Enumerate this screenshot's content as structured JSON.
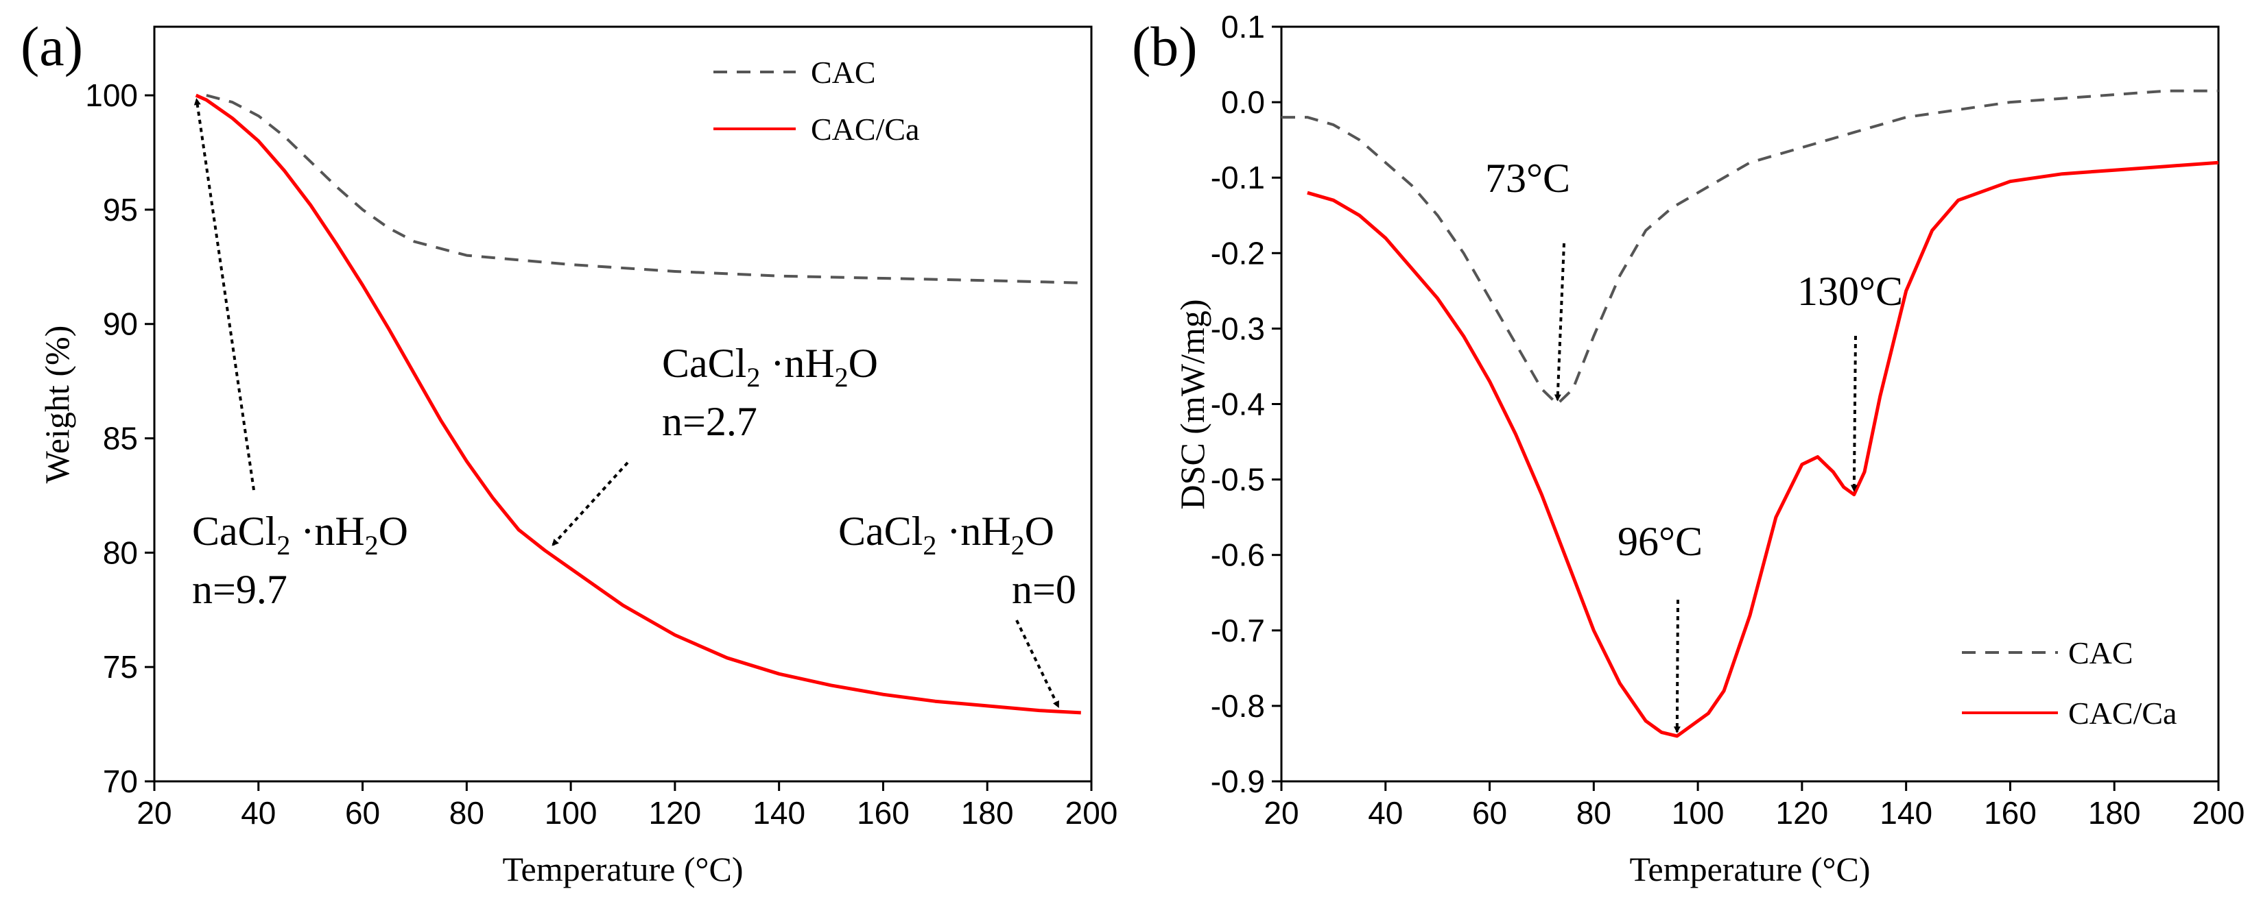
{
  "colors": {
    "cac": "#555555",
    "cac_ca": "#ff0000",
    "axis": "#000000"
  },
  "chart_data": [
    {
      "panel": "(a)",
      "type": "line",
      "title": "",
      "xlabel": "Temperature (°C)",
      "ylabel": "Weight (%)",
      "xlim": [
        20,
        200
      ],
      "ylim": [
        70,
        103
      ],
      "xticks": [
        20,
        40,
        60,
        80,
        100,
        120,
        140,
        160,
        180,
        200
      ],
      "yticks": [
        70,
        75,
        80,
        85,
        90,
        95,
        100
      ],
      "grid": false,
      "legend_position": "top-right",
      "series": [
        {
          "name": "CAC",
          "style": "dashed",
          "color": "#555555",
          "x": [
            30,
            35,
            40,
            45,
            50,
            55,
            60,
            65,
            70,
            80,
            90,
            100,
            120,
            140,
            160,
            180,
            198
          ],
          "y": [
            100,
            99.7,
            99.1,
            98.2,
            97.1,
            96.0,
            95.0,
            94.2,
            93.6,
            93.0,
            92.8,
            92.6,
            92.3,
            92.1,
            92.0,
            91.9,
            91.8
          ]
        },
        {
          "name": "CAC/Ca",
          "style": "solid",
          "color": "#ff0000",
          "x": [
            28,
            30,
            35,
            40,
            45,
            50,
            55,
            60,
            65,
            70,
            75,
            80,
            85,
            90,
            95,
            100,
            110,
            120,
            130,
            140,
            150,
            160,
            170,
            180,
            190,
            198
          ],
          "y": [
            100,
            99.8,
            99.0,
            98.0,
            96.7,
            95.2,
            93.5,
            91.7,
            89.8,
            87.8,
            85.8,
            84.0,
            82.4,
            81.0,
            80.1,
            79.3,
            77.7,
            76.4,
            75.4,
            74.7,
            74.2,
            73.8,
            73.5,
            73.3,
            73.1,
            73.0
          ]
        }
      ],
      "annotations": [
        {
          "id": "a1",
          "formula": "CaCl",
          "sub": "2",
          "middle": " ·nH",
          "sub2": "2",
          "tail": "O",
          "n_text": "n=9.7",
          "target_x": 28,
          "target_y": 100
        },
        {
          "id": "a2",
          "formula": "CaCl",
          "sub": "2",
          "middle": " ·nH",
          "sub2": "2",
          "tail": "O",
          "n_text": "n=2.7",
          "target_x": 96,
          "target_y": 80.2
        },
        {
          "id": "a3",
          "formula": "CaCl",
          "sub": "2",
          "middle": " ·nH",
          "sub2": "2",
          "tail": "O",
          "n_text": "n=0",
          "target_x": 194,
          "target_y": 73.1
        }
      ]
    },
    {
      "panel": "(b)",
      "type": "line",
      "title": "",
      "xlabel": "Temperature (°C)",
      "ylabel": "DSC (mW/mg)",
      "xlim": [
        20,
        200
      ],
      "ylim": [
        -0.9,
        0.1
      ],
      "xticks": [
        20,
        40,
        60,
        80,
        100,
        120,
        140,
        160,
        180,
        200
      ],
      "yticks": [
        -0.9,
        -0.8,
        -0.7,
        -0.6,
        -0.5,
        -0.4,
        -0.3,
        -0.2,
        -0.1,
        0.0,
        0.1
      ],
      "ytick_labels": [
        "-0.9",
        "-0.8",
        "-0.7",
        "-0.6",
        "-0.5",
        "-0.4",
        "-0.3",
        "-0.2",
        "-0.1",
        "0.0",
        "0.1"
      ],
      "grid": false,
      "legend_position": "bottom-right",
      "series": [
        {
          "name": "CAC",
          "style": "dashed",
          "color": "#555555",
          "x": [
            20,
            25,
            30,
            35,
            40,
            45,
            50,
            55,
            60,
            65,
            70,
            73,
            76,
            80,
            85,
            90,
            95,
            100,
            110,
            120,
            130,
            140,
            150,
            160,
            170,
            180,
            190,
            200
          ],
          "y": [
            -0.02,
            -0.02,
            -0.03,
            -0.05,
            -0.08,
            -0.11,
            -0.15,
            -0.2,
            -0.26,
            -0.32,
            -0.38,
            -0.4,
            -0.38,
            -0.31,
            -0.23,
            -0.17,
            -0.14,
            -0.12,
            -0.08,
            -0.06,
            -0.04,
            -0.02,
            -0.01,
            0.0,
            0.005,
            0.01,
            0.015,
            0.015
          ]
        },
        {
          "name": "CAC/Ca",
          "style": "solid",
          "color": "#ff0000",
          "x": [
            25,
            30,
            35,
            40,
            45,
            50,
            55,
            60,
            65,
            70,
            75,
            80,
            85,
            90,
            93,
            96,
            99,
            102,
            105,
            110,
            115,
            120,
            123,
            126,
            128,
            130,
            132,
            135,
            140,
            145,
            150,
            160,
            170,
            180,
            190,
            200
          ],
          "y": [
            -0.12,
            -0.13,
            -0.15,
            -0.18,
            -0.22,
            -0.26,
            -0.31,
            -0.37,
            -0.44,
            -0.52,
            -0.61,
            -0.7,
            -0.77,
            -0.82,
            -0.835,
            -0.84,
            -0.825,
            -0.81,
            -0.78,
            -0.68,
            -0.55,
            -0.48,
            -0.47,
            -0.49,
            -0.51,
            -0.52,
            -0.49,
            -0.39,
            -0.25,
            -0.17,
            -0.13,
            -0.105,
            -0.095,
            -0.09,
            -0.085,
            -0.08
          ]
        }
      ],
      "annotations": [
        {
          "id": "b1",
          "label": "73°C",
          "target_x": 73,
          "target_y": -0.4
        },
        {
          "id": "b2",
          "label": "96°C",
          "target_x": 96,
          "target_y": -0.84
        },
        {
          "id": "b3",
          "label": "130°C",
          "target_x": 130,
          "target_y": -0.52
        }
      ]
    }
  ]
}
